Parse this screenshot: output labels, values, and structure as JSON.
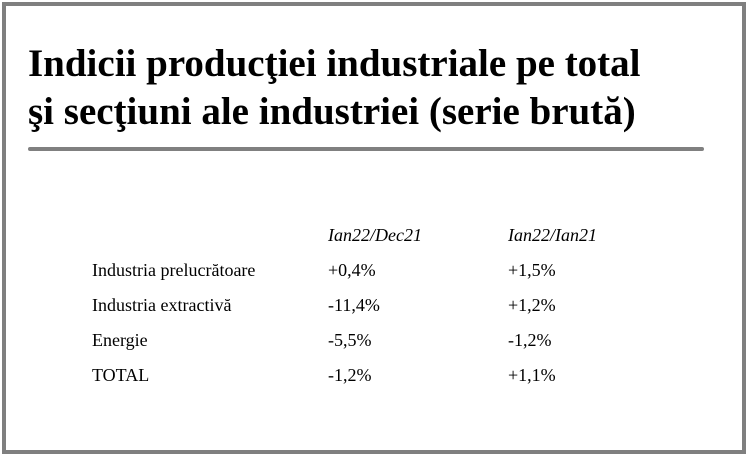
{
  "title": {
    "line1": "Indicii producţiei industriale pe total",
    "line2": "şi secţiuni ale industriei (serie brută)"
  },
  "table": {
    "headers": [
      "",
      "Ian22/Dec21",
      "Ian22/Ian21"
    ],
    "rows": [
      {
        "label": "Industria prelucrătoare",
        "mom": "+0,4%",
        "yoy": "+1,5%"
      },
      {
        "label": "Industria extractivă",
        "mom": "-11,4%",
        "yoy": "+1,2%"
      },
      {
        "label": "Energie",
        "mom": "-5,5%",
        "yoy": "-1,2%"
      },
      {
        "label": "TOTAL",
        "mom": "-1,2%",
        "yoy": "+1,1%"
      }
    ]
  },
  "colors": {
    "border": "#7f7f7f",
    "rule": "#808080",
    "text": "#000000",
    "background": "#ffffff"
  }
}
